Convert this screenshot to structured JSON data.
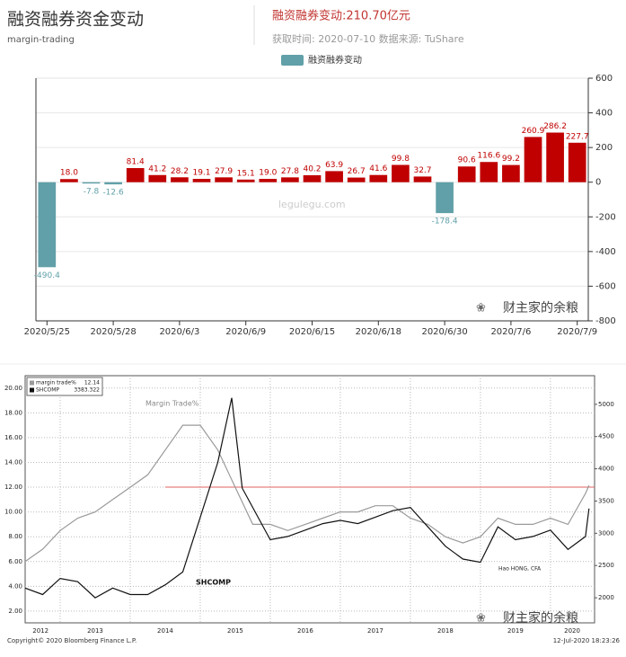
{
  "chart_data": [
    {
      "type": "bar",
      "title": "融资融券资金变动",
      "subtitle": "margin-trading",
      "summary": "融资融券变动:210.70亿元",
      "info": "获取时间: 2020-07-10  数据来源: TuShare",
      "watermark": "legulegu.com",
      "watermark2": "财主家的余粮",
      "series_name": "融资融券变动",
      "color": "#c00000",
      "negative_color": "#61a0a8",
      "categories": [
        "2020/5/25",
        null,
        null,
        "2020/5/28",
        null,
        null,
        "2020/6/3",
        null,
        null,
        "2020/6/9",
        null,
        null,
        "2020/6/15",
        null,
        null,
        "2020/6/18",
        null,
        null,
        "2020/6/30",
        null,
        null,
        "2020/7/6",
        null,
        null,
        "2020/7/9"
      ],
      "values": [
        -490.4,
        18.0,
        -7.8,
        -12.6,
        81.4,
        41.2,
        28.2,
        19.1,
        27.9,
        15.1,
        19.0,
        27.8,
        40.2,
        63.9,
        26.7,
        41.6,
        99.8,
        32.7,
        -178.4,
        90.6,
        116.6,
        99.2,
        260.9,
        286.2,
        227.7
      ],
      "value_labels": [
        "-490.4",
        "18.0",
        "-7.8",
        "-12.6",
        "81.4",
        "41.2",
        "28.2",
        "19.1",
        "27.9",
        "15.1",
        "19.0",
        "27.8",
        "40.2",
        "63.9",
        "26.7",
        "41.6",
        "99.8",
        "32.7",
        "-178.4",
        "90.6",
        "116.6",
        "99.2",
        "260.9",
        "286.2",
        "227.7"
      ],
      "ylim": [
        -800,
        600
      ],
      "yticks": [
        -800,
        -600,
        -400,
        -200,
        0,
        200,
        400,
        600
      ],
      "grid": true
    },
    {
      "type": "line",
      "annotations": [
        "Margin Trade%",
        "SHCOMP",
        "Hao HONG, CFA"
      ],
      "copyright": "Copyright© 2020 Bloomberg Finance L.P.",
      "timestamp": "12-Jul-2020 18:23:26",
      "watermark": "财主家的余粮",
      "reference_line": 12,
      "reference_color": "#e06060",
      "xlim": [
        2012.5,
        2020.63
      ],
      "xticks": [
        {
          "value": 2012.72,
          "label": "2012"
        },
        {
          "value": 2013.5,
          "label": "2013"
        },
        {
          "value": 2014.5,
          "label": "2014"
        },
        {
          "value": 2015.5,
          "label": "2015"
        },
        {
          "value": 2016.5,
          "label": "2016"
        },
        {
          "value": 2017.5,
          "label": "2017"
        },
        {
          "value": 2018.5,
          "label": "2018"
        },
        {
          "value": 2019.5,
          "label": "2019"
        },
        {
          "value": 2020.31,
          "label": "2020"
        }
      ],
      "xgrid": [
        2013,
        2014,
        2015,
        2016,
        2017,
        2018,
        2019,
        2020
      ],
      "ylim": [
        1.05,
        21
      ],
      "yticks": [
        {
          "value": 2,
          "label": "2.00"
        },
        {
          "value": 4,
          "label": "4.00"
        },
        {
          "value": 6,
          "label": "6.00"
        },
        {
          "value": 8,
          "label": "8.00"
        },
        {
          "value": 10,
          "label": "10.00"
        },
        {
          "value": 12,
          "label": "12.00"
        },
        {
          "value": 14,
          "label": "14.00"
        },
        {
          "value": 16,
          "label": "16.00"
        },
        {
          "value": 18,
          "label": "18.00"
        },
        {
          "value": 20,
          "label": "20.00"
        }
      ],
      "y2lim": [
        1611,
        5444
      ],
      "y2ticks": [
        2000,
        2500,
        3000,
        3500,
        4000,
        4500,
        5000
      ],
      "grid": true,
      "series": [
        {
          "name": "margin trade%",
          "legend_value": 12.14,
          "color": "#9a9a9a",
          "x": [
            2012.5,
            2012.75,
            2013,
            2013.25,
            2013.5,
            2013.75,
            2014,
            2014.25,
            2014.5,
            2014.75,
            2015,
            2015.25,
            2015.5,
            2015.75,
            2016,
            2016.25,
            2016.5,
            2016.75,
            2017,
            2017.25,
            2017.5,
            2017.75,
            2018,
            2018.25,
            2018.5,
            2018.75,
            2019,
            2019.25,
            2019.5,
            2019.75,
            2020,
            2020.25,
            2020.5,
            2020.55
          ],
          "values": [
            6,
            7,
            8.5,
            9.5,
            10,
            11,
            12,
            13,
            15,
            17,
            17,
            15,
            12,
            9,
            9,
            8.5,
            9,
            9.5,
            10,
            10,
            10.5,
            10.5,
            9.5,
            9,
            8,
            7.5,
            8,
            9.5,
            9,
            9,
            9.5,
            9,
            11.5,
            12.14
          ]
        },
        {
          "name": "SHCOMP",
          "legend_value": 3383.322,
          "color": "#111111",
          "axis": "y2",
          "x": [
            2012.5,
            2012.75,
            2013,
            2013.25,
            2013.5,
            2013.75,
            2014,
            2014.25,
            2014.5,
            2014.75,
            2015,
            2015.25,
            2015.45,
            2015.6,
            2015.75,
            2016,
            2016.25,
            2016.5,
            2016.75,
            2017,
            2017.25,
            2017.5,
            2017.75,
            2018,
            2018.25,
            2018.5,
            2018.75,
            2019,
            2019.25,
            2019.5,
            2019.75,
            2020,
            2020.25,
            2020.5,
            2020.55
          ],
          "values": [
            2150,
            2050,
            2300,
            2250,
            2000,
            2150,
            2050,
            2050,
            2200,
            2400,
            3250,
            4100,
            5100,
            3700,
            3400,
            2900,
            2950,
            3050,
            3150,
            3200,
            3150,
            3250,
            3350,
            3400,
            3100,
            2800,
            2600,
            2550,
            3100,
            2900,
            2950,
            3050,
            2750,
            2950,
            3383.322
          ]
        }
      ]
    }
  ]
}
